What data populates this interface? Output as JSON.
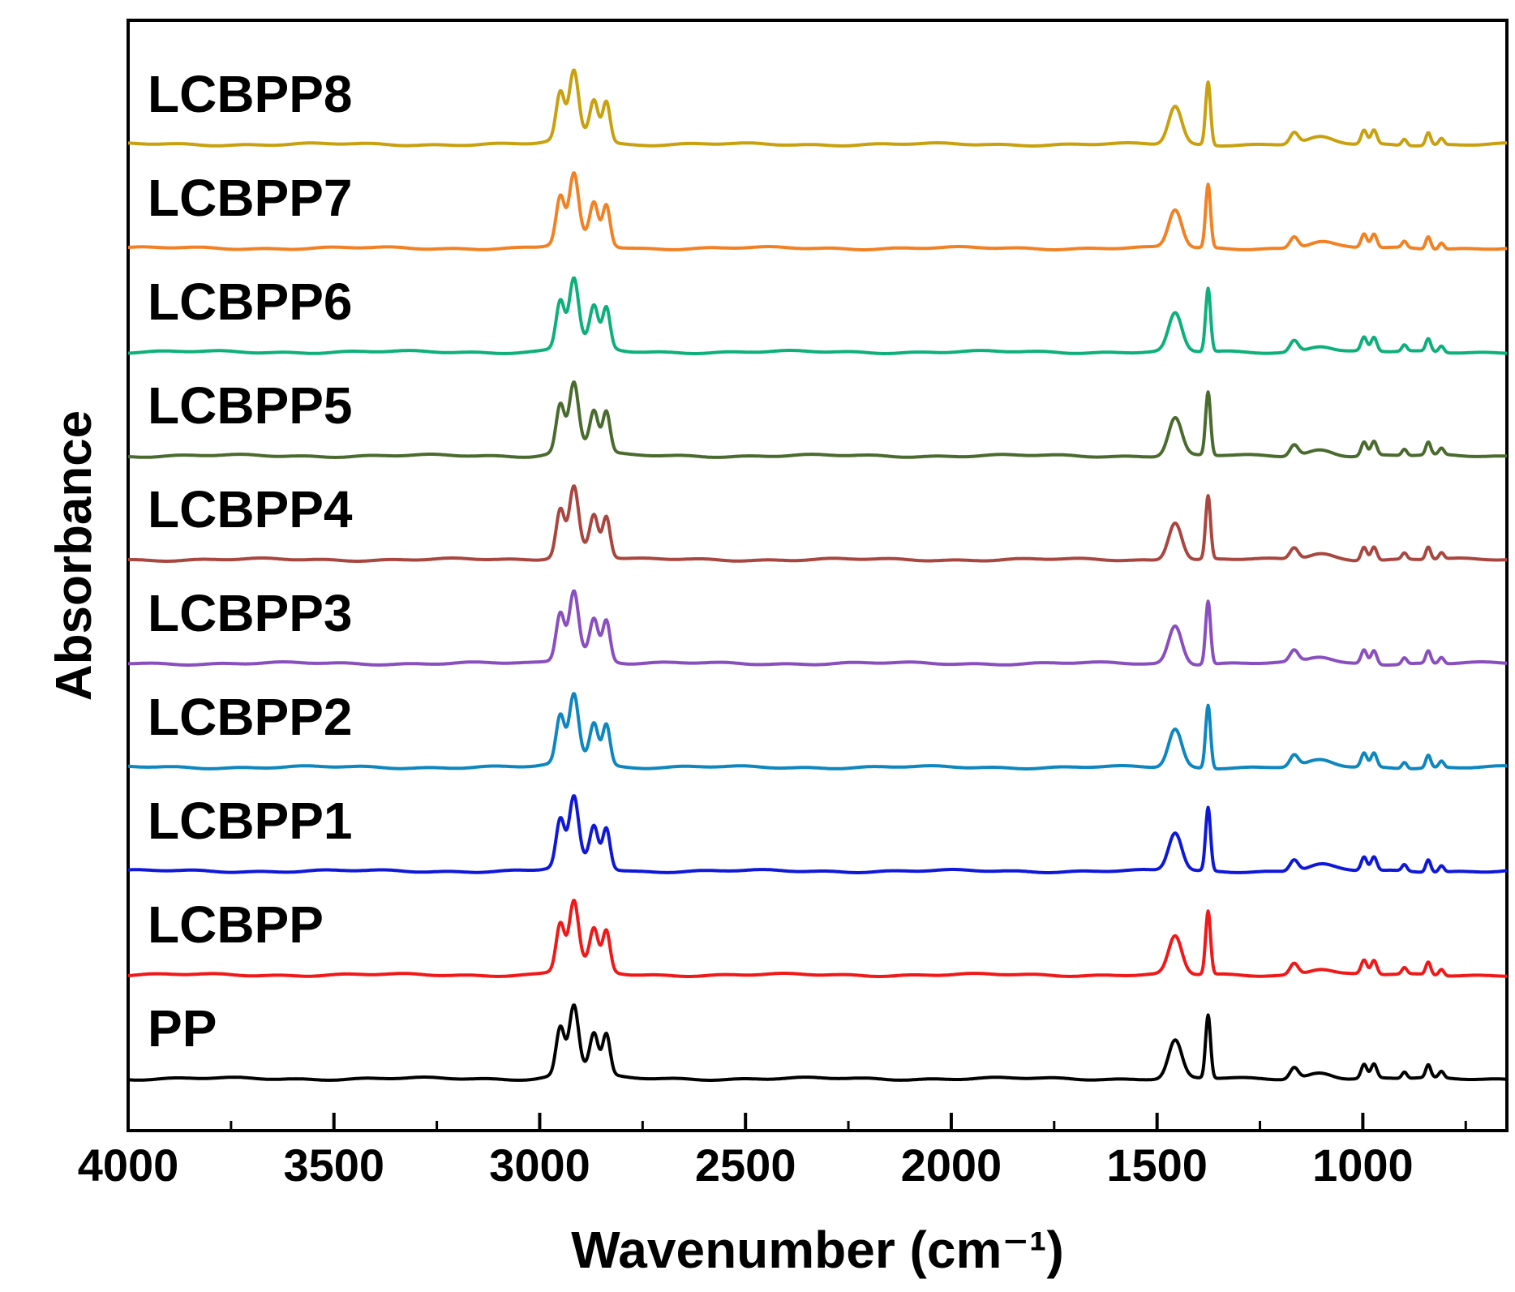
{
  "chart_data": {
    "type": "line",
    "title": "",
    "xlabel": "Wavenumber (cm⁻¹)",
    "ylabel": "Absorbance",
    "xlim": [
      4000,
      650
    ],
    "x_reversed": true,
    "xticks": [
      4000,
      3500,
      3000,
      2500,
      2000,
      1500,
      1000
    ],
    "minor_xticks": [
      3750,
      3250,
      2750,
      2250,
      1750,
      1250,
      750
    ],
    "yticks": [],
    "grid": false,
    "legend": "none (series labelled inline at left of each trace)",
    "stacked_offset": true,
    "peaks_cm1": [
      {
        "x": 2950,
        "height": 0.72,
        "width": 10
      },
      {
        "x": 2917,
        "height": 1.0,
        "width": 11
      },
      {
        "x": 2868,
        "height": 0.58,
        "width": 10
      },
      {
        "x": 2838,
        "height": 0.62,
        "width": 9
      },
      {
        "x": 1456,
        "height": 0.6,
        "width": 16
      },
      {
        "x": 1376,
        "height": 1.0,
        "width": 6
      },
      {
        "x": 1167,
        "height": 0.18,
        "width": 10
      },
      {
        "x": 1103,
        "height": 0.1,
        "width": 30
      },
      {
        "x": 997,
        "height": 0.22,
        "width": 7
      },
      {
        "x": 973,
        "height": 0.22,
        "width": 7
      },
      {
        "x": 899,
        "height": 0.1,
        "width": 6
      },
      {
        "x": 841,
        "height": 0.2,
        "width": 6
      },
      {
        "x": 809,
        "height": 0.1,
        "width": 6
      }
    ],
    "series": [
      {
        "name": "LCBPP8",
        "color": "#C9A00E",
        "offset": 9
      },
      {
        "name": "LCBPP7",
        "color": "#F28124",
        "offset": 8
      },
      {
        "name": "LCBPP6",
        "color": "#0DB07A",
        "offset": 7
      },
      {
        "name": "LCBPP5",
        "color": "#4A6B2E",
        "offset": 6
      },
      {
        "name": "LCBPP4",
        "color": "#A8463F",
        "offset": 5
      },
      {
        "name": "LCBPP3",
        "color": "#8A4FBF",
        "offset": 4
      },
      {
        "name": "LCBPP2",
        "color": "#0E87BF",
        "offset": 3
      },
      {
        "name": "LCBPP1",
        "color": "#0F18D8",
        "offset": 2
      },
      {
        "name": "LCBPP",
        "color": "#F01818",
        "offset": 1
      },
      {
        "name": "PP",
        "color": "#000000",
        "offset": 0
      }
    ]
  }
}
